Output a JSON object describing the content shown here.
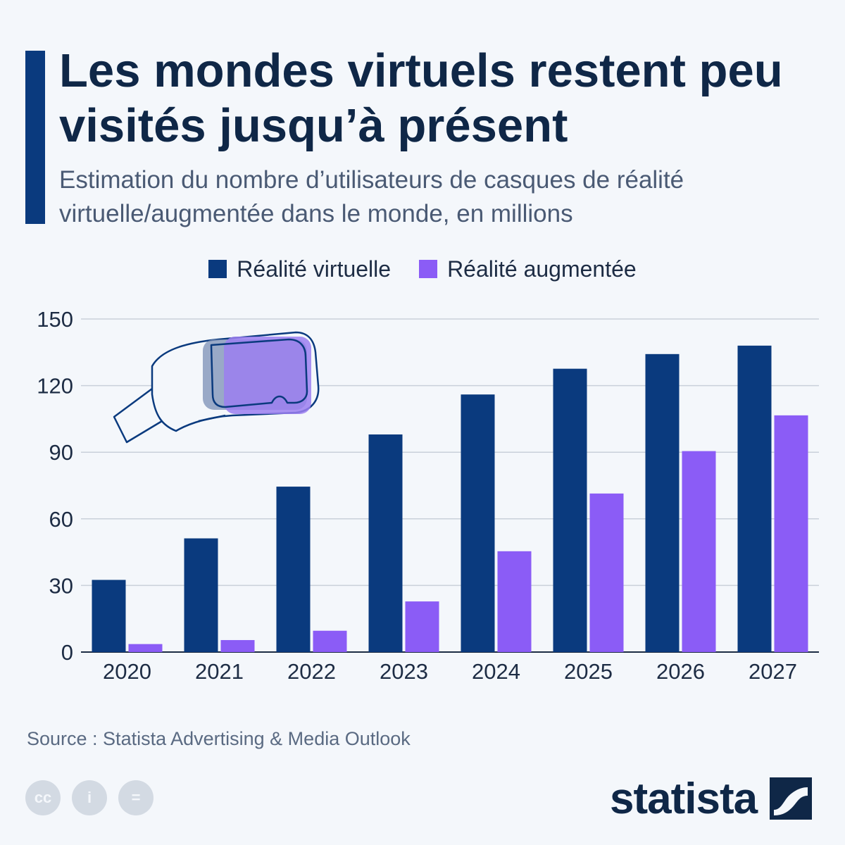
{
  "header": {
    "title": "Les mondes virtuels restent peu visités jusqu’à présent",
    "subtitle": "Estimation du nombre d’utilisateurs de casques de réalité virtuelle/augmentée dans le monde, en millions"
  },
  "chart_data": {
    "type": "bar",
    "categories": [
      "2020",
      "2021",
      "2022",
      "2023",
      "2024",
      "2025",
      "2026",
      "2027"
    ],
    "series": [
      {
        "name": "Réalité virtuelle",
        "color": "#0a3a7e",
        "values": [
          32.5,
          51.2,
          74.5,
          98.0,
          116.0,
          127.6,
          134.2,
          138.0
        ]
      },
      {
        "name": "Réalité augmentée",
        "color": "#8b5cf6",
        "values": [
          3.6,
          5.4,
          9.6,
          22.8,
          45.4,
          71.4,
          90.5,
          106.6
        ]
      }
    ],
    "ylim": [
      0,
      150
    ],
    "yticks": [
      0,
      30,
      60,
      90,
      120,
      150
    ],
    "grid": true,
    "legend_position": "top-center"
  },
  "footer": {
    "source": "Source : Statista Advertising & Media Outlook",
    "brand": "statista",
    "cc_icons": [
      {
        "name": "cc-icon",
        "glyph": "cc"
      },
      {
        "name": "attribution-icon",
        "glyph": "i"
      },
      {
        "name": "no-derivatives-icon",
        "glyph": "="
      }
    ]
  }
}
